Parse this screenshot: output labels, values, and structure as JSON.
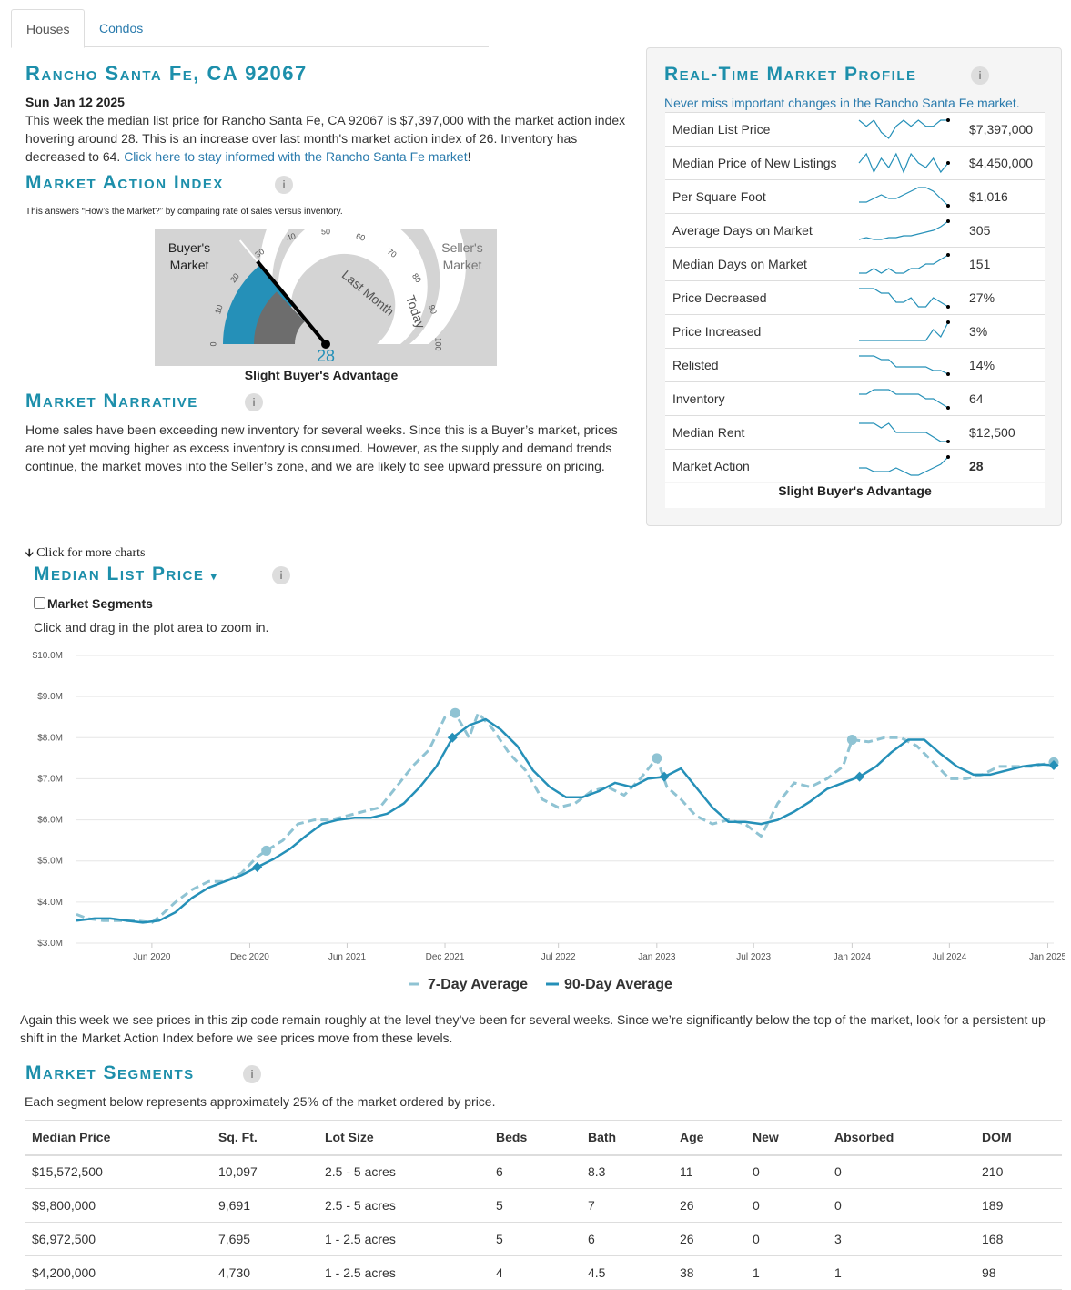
{
  "tabs": [
    {
      "label": "Houses",
      "active": true
    },
    {
      "label": "Condos",
      "active": false
    }
  ],
  "location_title": "Rancho Santa Fe, CA 92067",
  "report_date": "Sun Jan 12 2025",
  "summary": {
    "text": "This week the median list price for Rancho Santa Fe, CA 92067 is $7,397,000 with the market action index hovering around 28. This is an increase over last month's market action index of 26. Inventory has decreased to 64.",
    "link": "Click here to stay informed with the Rancho Santa Fe market",
    "link_suffix": "!"
  },
  "mai": {
    "heading": "Market Action Index",
    "description": "This answers “How’s the Market?” by comparing rate of sales versus inventory.",
    "gauge": {
      "buyers_label_1": "Buyer's",
      "buyers_label_2": "Market",
      "sellers_label_1": "Seller's",
      "sellers_label_2": "Market",
      "ticks": [
        "0",
        "10",
        "20",
        "30",
        "40",
        "50",
        "60",
        "70",
        "80",
        "90",
        "100"
      ],
      "today_value": 28,
      "last_month_value": 26,
      "value_label": "28",
      "last_month_label": "Last Month",
      "today_label": "Today",
      "colors": {
        "today_fill": "#2590b8",
        "last_month_fill": "#6d6d6d",
        "background": "#d4d4d4"
      }
    },
    "caption": "Slight Buyer's Advantage"
  },
  "narrative": {
    "heading": "Market Narrative",
    "text": "Home sales have been exceeding new inventory for several weeks. Since this is a Buyer’s market, prices are not yet moving higher as excess inventory is consumed. However, as the supply and demand trends continue, the market moves into the Seller’s zone, and we are likely to see upward pressure on pricing."
  },
  "profile": {
    "heading": "Real-Time Market Profile",
    "subtitle": "Never miss important changes in the Rancho Santa Fe market.",
    "rows": [
      {
        "label": "Median List Price",
        "value": "$7,397,000",
        "spark": [
          7,
          6,
          7,
          5,
          4,
          6,
          7,
          6,
          7,
          6,
          6,
          7,
          7
        ],
        "bold": false
      },
      {
        "label": "Median Price of New Listings",
        "value": "$4,450,000",
        "spark": [
          5,
          7,
          3,
          6,
          4,
          7,
          3,
          7,
          5,
          4,
          6,
          3,
          5
        ],
        "bold": false
      },
      {
        "label": "Per Square Foot",
        "value": "$1,016",
        "spark": [
          4,
          4,
          5,
          6,
          5,
          5,
          6,
          7,
          8,
          8,
          7,
          5,
          3
        ],
        "bold": false
      },
      {
        "label": "Average Days on Market",
        "value": "305",
        "spark": [
          2,
          2.5,
          2,
          2,
          2.5,
          2.5,
          3,
          3,
          3.5,
          4,
          4.5,
          5.5,
          7
        ],
        "bold": false
      },
      {
        "label": "Median Days on Market",
        "value": "151",
        "spark": [
          3,
          3,
          4,
          3,
          4,
          3,
          3,
          4,
          4,
          5,
          5,
          6,
          7
        ],
        "bold": false
      },
      {
        "label": "Price Decreased",
        "value": "27%",
        "spark": [
          7,
          7,
          7,
          6,
          6,
          4,
          4,
          5,
          3,
          3,
          5,
          4,
          3
        ],
        "bold": false
      },
      {
        "label": "Price Increased",
        "value": "3%",
        "spark": [
          1,
          1,
          1,
          1,
          1,
          1,
          1,
          1,
          1,
          1,
          4,
          2,
          6
        ],
        "bold": false
      },
      {
        "label": "Relisted",
        "value": "14%",
        "spark": [
          7,
          7,
          7,
          6,
          6,
          4,
          4,
          4,
          4,
          4,
          3,
          3,
          2
        ],
        "bold": false
      },
      {
        "label": "Inventory",
        "value": "64",
        "spark": [
          5,
          5,
          6,
          6,
          6,
          5,
          5,
          5,
          5,
          4,
          4,
          3,
          2
        ],
        "bold": false
      },
      {
        "label": "Median Rent",
        "value": "$12,500",
        "spark": [
          6,
          6,
          6,
          5,
          6,
          4,
          4,
          4,
          4,
          4,
          3,
          2,
          2
        ],
        "bold": false
      },
      {
        "label": "Market Action",
        "value": "28",
        "spark": [
          4,
          4,
          3,
          3,
          3,
          4,
          3,
          2,
          2,
          3,
          4,
          5,
          7
        ],
        "bold": true
      }
    ],
    "footer": "Slight Buyer's Advantage"
  },
  "more_charts": "Click for more charts",
  "price_chart": {
    "heading": "Median List Price",
    "segments_checkbox_label": "Market Segments",
    "zoom_hint": "Click and drag in the plot area to zoom in.",
    "legend": {
      "seven_day": "7-Day Average",
      "ninety_day": "90-Day Average"
    }
  },
  "chart_data": {
    "type": "line",
    "x_unit": "date",
    "ylim": [
      3.0,
      10.0
    ],
    "y_ticks": [
      "$3.0M",
      "$4.0M",
      "$5.0M",
      "$6.0M",
      "$7.0M",
      "$8.0M",
      "$9.0M",
      "$10.0M"
    ],
    "x_ticks": [
      {
        "label": "Jun 2020",
        "date": "2020-06-01"
      },
      {
        "label": "Dec 2020",
        "date": "2020-12-01"
      },
      {
        "label": "Jun 2021",
        "date": "2021-06-01"
      },
      {
        "label": "Dec 2021",
        "date": "2021-12-01"
      },
      {
        "label": "Jul 2022",
        "date": "2022-07-01"
      },
      {
        "label": "Jan 2023",
        "date": "2023-01-01"
      },
      {
        "label": "Jul 2023",
        "date": "2023-07-01"
      },
      {
        "label": "Jan 2024",
        "date": "2024-01-01"
      },
      {
        "label": "Jul 2024",
        "date": "2024-07-01"
      },
      {
        "label": "Jan 2025",
        "date": "2025-01-01"
      }
    ],
    "series": [
      {
        "name": "7-Day Average",
        "style": "dashed",
        "color": "#8fc3d3",
        "points": [
          [
            "2020-01-12",
            3.7
          ],
          [
            "2020-02-01",
            3.6
          ],
          [
            "2020-03-01",
            3.55
          ],
          [
            "2020-04-01",
            3.55
          ],
          [
            "2020-05-01",
            3.55
          ],
          [
            "2020-06-01",
            3.5
          ],
          [
            "2020-06-20",
            3.7
          ],
          [
            "2020-07-15",
            4.0
          ],
          [
            "2020-08-15",
            4.3
          ],
          [
            "2020-09-15",
            4.5
          ],
          [
            "2020-10-15",
            4.5
          ],
          [
            "2020-11-15",
            4.7
          ],
          [
            "2020-12-15",
            5.1
          ],
          [
            "2021-01-01",
            5.25
          ],
          [
            "2021-02-01",
            5.5
          ],
          [
            "2021-03-01",
            5.9
          ],
          [
            "2021-04-01",
            6.0
          ],
          [
            "2021-05-01",
            6.0
          ],
          [
            "2021-06-01",
            6.1
          ],
          [
            "2021-07-01",
            6.2
          ],
          [
            "2021-08-01",
            6.3
          ],
          [
            "2021-09-01",
            6.8
          ],
          [
            "2021-10-01",
            7.3
          ],
          [
            "2021-11-01",
            7.7
          ],
          [
            "2021-12-01",
            8.5
          ],
          [
            "2021-12-20",
            8.6
          ],
          [
            "2022-01-15",
            8.0
          ],
          [
            "2022-02-01",
            8.6
          ],
          [
            "2022-03-01",
            8.2
          ],
          [
            "2022-04-01",
            7.6
          ],
          [
            "2022-05-01",
            7.2
          ],
          [
            "2022-06-01",
            6.5
          ],
          [
            "2022-07-01",
            6.3
          ],
          [
            "2022-08-01",
            6.4
          ],
          [
            "2022-09-01",
            6.7
          ],
          [
            "2022-10-01",
            6.8
          ],
          [
            "2022-11-01",
            6.6
          ],
          [
            "2022-12-01",
            7.0
          ],
          [
            "2023-01-01",
            7.5
          ],
          [
            "2023-01-20",
            6.8
          ],
          [
            "2023-02-15",
            6.5
          ],
          [
            "2023-03-15",
            6.1
          ],
          [
            "2023-04-15",
            5.9
          ],
          [
            "2023-05-15",
            6.0
          ],
          [
            "2023-06-15",
            5.9
          ],
          [
            "2023-07-15",
            5.6
          ],
          [
            "2023-08-15",
            6.4
          ],
          [
            "2023-09-15",
            6.9
          ],
          [
            "2023-10-15",
            6.8
          ],
          [
            "2023-11-15",
            7.0
          ],
          [
            "2023-12-15",
            7.3
          ],
          [
            "2024-01-01",
            7.95
          ],
          [
            "2024-02-01",
            7.9
          ],
          [
            "2024-03-01",
            8.0
          ],
          [
            "2024-04-01",
            8.0
          ],
          [
            "2024-05-01",
            7.8
          ],
          [
            "2024-06-01",
            7.4
          ],
          [
            "2024-07-01",
            7.0
          ],
          [
            "2024-08-01",
            7.0
          ],
          [
            "2024-09-01",
            7.1
          ],
          [
            "2024-10-01",
            7.3
          ],
          [
            "2024-11-01",
            7.3
          ],
          [
            "2024-12-01",
            7.3
          ],
          [
            "2025-01-12",
            7.4
          ]
        ]
      },
      {
        "name": "90-Day Average",
        "style": "solid",
        "color": "#2590b8",
        "points": [
          [
            "2020-01-12",
            3.55
          ],
          [
            "2020-02-15",
            3.6
          ],
          [
            "2020-03-15",
            3.6
          ],
          [
            "2020-04-15",
            3.55
          ],
          [
            "2020-05-15",
            3.5
          ],
          [
            "2020-06-15",
            3.55
          ],
          [
            "2020-07-15",
            3.75
          ],
          [
            "2020-08-15",
            4.1
          ],
          [
            "2020-09-15",
            4.35
          ],
          [
            "2020-10-15",
            4.5
          ],
          [
            "2020-11-15",
            4.65
          ],
          [
            "2020-12-15",
            4.85
          ],
          [
            "2021-01-15",
            5.05
          ],
          [
            "2021-02-15",
            5.3
          ],
          [
            "2021-03-15",
            5.6
          ],
          [
            "2021-04-15",
            5.9
          ],
          [
            "2021-05-15",
            6.0
          ],
          [
            "2021-06-15",
            6.05
          ],
          [
            "2021-07-15",
            6.05
          ],
          [
            "2021-08-15",
            6.15
          ],
          [
            "2021-09-15",
            6.4
          ],
          [
            "2021-10-15",
            6.8
          ],
          [
            "2021-11-15",
            7.3
          ],
          [
            "2021-12-15",
            8.0
          ],
          [
            "2022-01-15",
            8.3
          ],
          [
            "2022-02-15",
            8.45
          ],
          [
            "2022-03-15",
            8.2
          ],
          [
            "2022-04-15",
            7.8
          ],
          [
            "2022-05-15",
            7.2
          ],
          [
            "2022-06-15",
            6.8
          ],
          [
            "2022-07-15",
            6.55
          ],
          [
            "2022-08-15",
            6.55
          ],
          [
            "2022-09-15",
            6.7
          ],
          [
            "2022-10-15",
            6.9
          ],
          [
            "2022-11-15",
            6.8
          ],
          [
            "2022-12-15",
            7.0
          ],
          [
            "2023-01-15",
            7.05
          ],
          [
            "2023-02-15",
            7.25
          ],
          [
            "2023-03-15",
            6.8
          ],
          [
            "2023-04-15",
            6.3
          ],
          [
            "2023-05-15",
            5.95
          ],
          [
            "2023-06-15",
            5.95
          ],
          [
            "2023-07-15",
            5.9
          ],
          [
            "2023-08-15",
            6.0
          ],
          [
            "2023-09-15",
            6.2
          ],
          [
            "2023-10-15",
            6.45
          ],
          [
            "2023-11-15",
            6.75
          ],
          [
            "2023-12-15",
            6.9
          ],
          [
            "2024-01-15",
            7.05
          ],
          [
            "2024-02-15",
            7.3
          ],
          [
            "2024-03-15",
            7.65
          ],
          [
            "2024-04-15",
            7.95
          ],
          [
            "2024-05-15",
            7.95
          ],
          [
            "2024-06-15",
            7.6
          ],
          [
            "2024-07-15",
            7.3
          ],
          [
            "2024-08-15",
            7.1
          ],
          [
            "2024-09-15",
            7.1
          ],
          [
            "2024-10-15",
            7.2
          ],
          [
            "2024-11-15",
            7.3
          ],
          [
            "2024-12-15",
            7.35
          ],
          [
            "2025-01-12",
            7.33
          ]
        ]
      }
    ],
    "markers": [
      {
        "series": "7-Day Average",
        "shape": "circle",
        "dates": [
          "2021-01-01",
          "2021-12-20",
          "2023-01-01",
          "2024-01-01",
          "2025-01-12"
        ]
      },
      {
        "series": "90-Day Average",
        "shape": "diamond",
        "dates": [
          "2020-12-15",
          "2021-12-15",
          "2023-01-15",
          "2024-01-15",
          "2025-01-12"
        ]
      }
    ]
  },
  "chart_comment": "Again this week we see prices in this zip code remain roughly at the level they’ve been for several weeks. Since we’re significantly below the top of the market, look for a persistent up-shift in the Market Action Index before we see prices move from these levels.",
  "segments": {
    "heading": "Market Segments",
    "description": "Each segment below represents approximately 25% of the market ordered by price.",
    "columns": [
      "Median Price",
      "Sq. Ft.",
      "Lot Size",
      "Beds",
      "Bath",
      "Age",
      "New",
      "Absorbed",
      "DOM"
    ],
    "rows": [
      [
        "$15,572,500",
        "10,097",
        "2.5 - 5 acres",
        "6",
        "8.3",
        "11",
        "0",
        "0",
        "210"
      ],
      [
        "$9,800,000",
        "9,691",
        "2.5 - 5 acres",
        "5",
        "7",
        "26",
        "0",
        "0",
        "189"
      ],
      [
        "$6,972,500",
        "7,695",
        "1 - 2.5 acres",
        "5",
        "6",
        "26",
        "0",
        "3",
        "168"
      ],
      [
        "$4,200,000",
        "4,730",
        "1 - 2.5 acres",
        "4",
        "4.5",
        "38",
        "1",
        "1",
        "98"
      ]
    ]
  }
}
